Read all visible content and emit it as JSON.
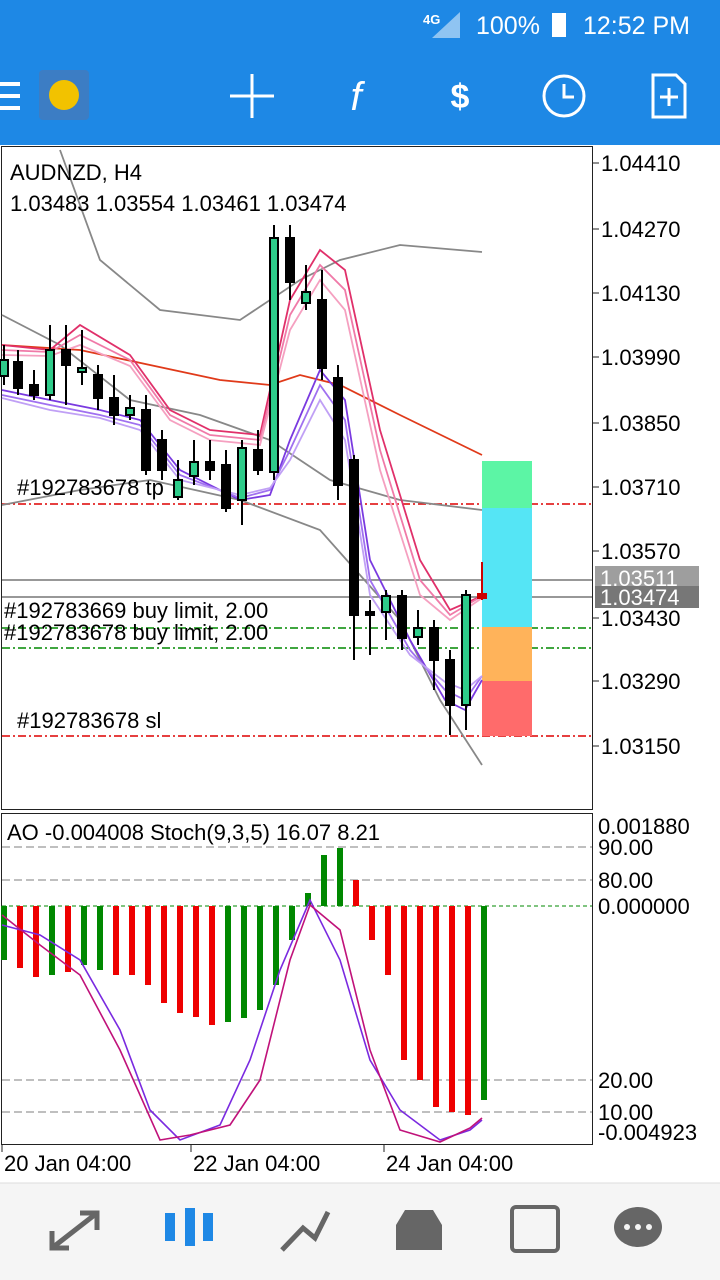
{
  "status_bar": {
    "network": "4G",
    "battery": "100%",
    "time": "12:52 PM"
  },
  "toolbar": {
    "function_icon": "f"
  },
  "chart": {
    "symbol": "AUDNZD, H4",
    "ohlc": "1.03483 1.03554 1.03461 1.03474",
    "price_axis": [
      "1.04410",
      "1.04270",
      "1.04130",
      "1.03990",
      "1.03850",
      "1.03710",
      "1.03570",
      "1.03430",
      "1.03290",
      "1.03150"
    ],
    "current_prices": [
      "1.03511",
      "1.03474"
    ],
    "order_labels": [
      "#192783678 tp",
      "#192783669 buy limit, 2.00",
      "#192783678 buy limit, 2.00",
      "#192783678 sl"
    ],
    "indicator_label": "AO -0.004008 Stoch(9,3,5) 16.07 8.21",
    "indicator_axis": [
      "0.001880",
      "90.00",
      "80.00",
      "0.000000",
      "20.00",
      "10.00",
      "-0.004923"
    ],
    "time_axis": [
      "20 Jan 04:00",
      "22 Jan 04:00",
      "24 Jan 04:00"
    ]
  }
}
